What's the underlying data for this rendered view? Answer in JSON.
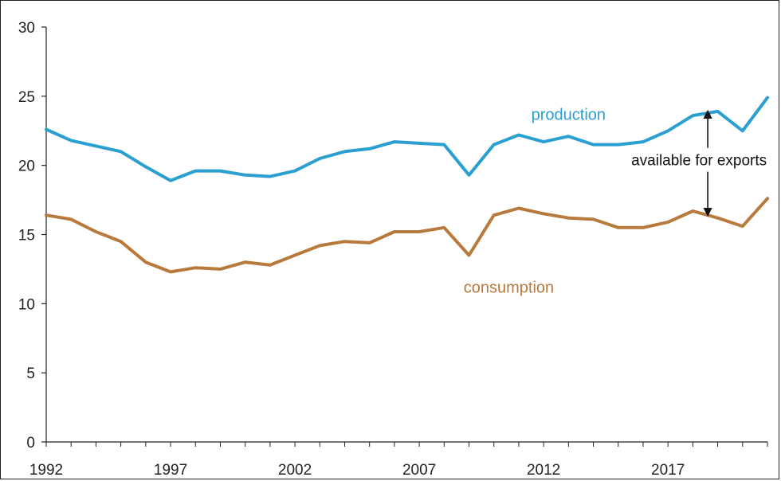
{
  "chart_data": {
    "type": "line",
    "title": "",
    "xlabel": "",
    "ylabel": "",
    "xlim": [
      1992,
      2021
    ],
    "ylim": [
      0,
      30
    ],
    "x_ticks": [
      1992,
      1997,
      2002,
      2007,
      2012,
      2017
    ],
    "y_ticks": [
      0,
      5,
      10,
      15,
      20,
      25,
      30
    ],
    "grid": false,
    "x": [
      1992,
      1993,
      1994,
      1995,
      1996,
      1997,
      1998,
      1999,
      2000,
      2001,
      2002,
      2003,
      2004,
      2005,
      2006,
      2007,
      2008,
      2009,
      2010,
      2011,
      2012,
      2013,
      2014,
      2015,
      2016,
      2017,
      2018,
      2019,
      2020,
      2021
    ],
    "series": [
      {
        "name": "production",
        "color": "#2a9fd0",
        "label_pos_x": 2013,
        "label_pos_y": 23.3,
        "values": [
          22.6,
          21.8,
          21.4,
          21.0,
          19.9,
          18.9,
          19.6,
          19.6,
          19.3,
          19.2,
          19.6,
          20.5,
          21.0,
          21.2,
          21.7,
          21.6,
          21.5,
          19.3,
          21.5,
          22.2,
          21.7,
          22.1,
          21.5,
          21.5,
          21.7,
          22.5,
          23.6,
          23.9,
          22.5,
          24.9
        ]
      },
      {
        "name": "consumption",
        "color": "#b87a3c",
        "label_pos_x": 2010.6,
        "label_pos_y": 10.8,
        "values": [
          16.4,
          16.1,
          15.2,
          14.5,
          13.0,
          12.3,
          12.6,
          12.5,
          13.0,
          12.8,
          13.5,
          14.2,
          14.5,
          14.4,
          15.2,
          15.2,
          15.5,
          13.5,
          16.4,
          16.9,
          16.5,
          16.2,
          16.1,
          15.5,
          15.5,
          15.9,
          16.7,
          16.2,
          15.6,
          17.6
        ]
      }
    ],
    "annotations": [
      {
        "text": "available for exports",
        "arrow_x": 2018.6,
        "arrow_from": 23.7,
        "arrow_to": 16.5,
        "text_y": 20.0
      }
    ]
  }
}
